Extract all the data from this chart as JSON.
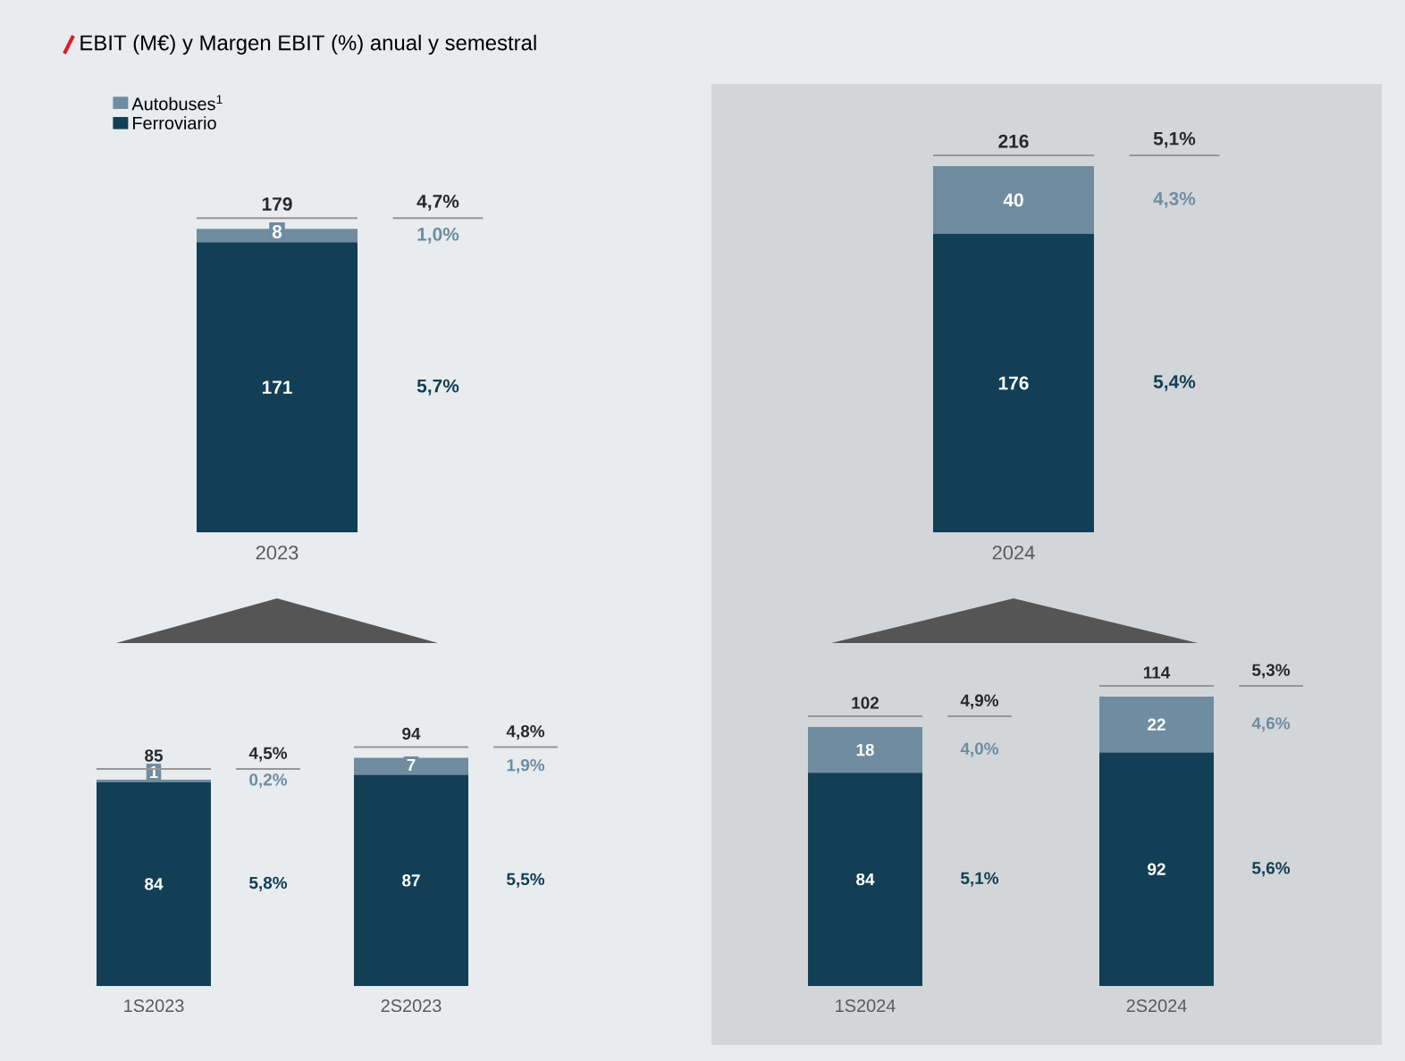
{
  "chart_data": [
    {
      "type": "bar",
      "title": "EBIT (M€) y Margen EBIT (%) anual y semestral",
      "categories": [
        "2023",
        "2024"
      ],
      "stacked": true,
      "data_labels": true,
      "legend": "top left",
      "tick_labels": "x",
      "series": [
        {
          "name": "Ferroviario",
          "color": "#123f55",
          "values": [
            171,
            176
          ]
        },
        {
          "name": "Autobuses$^{1}$",
          "color": "#6f8ca0",
          "values": [
            8,
            40
          ]
        }
      ],
      "totals": [
        "179",
        "216"
      ],
      "annotations": [
        "4,7%",
        "1,0%",
        "5,7%",
        "5,1%",
        "4,3%",
        "5,4%"
      ]
    },
    {
      "type": "bar",
      "categories": [
        "1S2023",
        "2S2023"
      ],
      "stacked": true,
      "data_labels": true,
      "tick_labels": "x",
      "series": [
        {
          "color": "#123f55",
          "values": [
            84,
            87
          ]
        },
        {
          "color": "#6f8ca0",
          "values": [
            1,
            7
          ]
        }
      ],
      "totals": [
        "85",
        "94"
      ],
      "annotations": [
        "4,5%",
        "0,2%",
        "5,8%",
        "4,8%",
        "1,9%",
        "5,5%"
      ]
    },
    {
      "type": "bar",
      "categories": [
        "1S2024",
        "2S2024"
      ],
      "stacked": true,
      "data_labels": true,
      "tick_labels": "x",
      "series": [
        {
          "color": "#123f55",
          "values": [
            84,
            92
          ]
        },
        {
          "color": "#6f8ca0",
          "values": [
            18,
            22
          ]
        }
      ],
      "totals": [
        "102",
        "114"
      ],
      "annotations": [
        "4,9%",
        "4,0%",
        "5,1%",
        "5,3%",
        "4,6%",
        "5,6%"
      ]
    }
  ]
}
